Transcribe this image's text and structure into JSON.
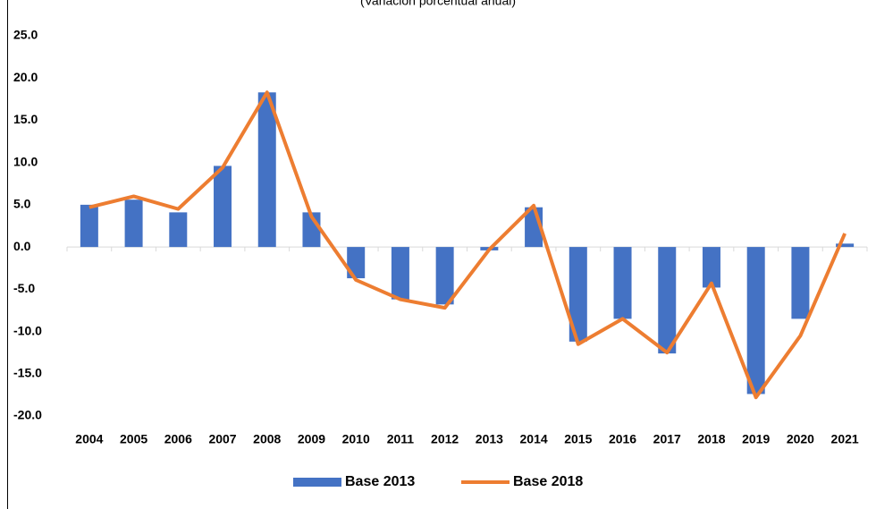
{
  "chart_data": {
    "type": "bar-line",
    "subtitle": "(Variación porcentual anual)",
    "categories": [
      "2004",
      "2005",
      "2006",
      "2007",
      "2008",
      "2009",
      "2010",
      "2011",
      "2012",
      "2013",
      "2014",
      "2015",
      "2016",
      "2017",
      "2018",
      "2019",
      "2020",
      "2021"
    ],
    "series": [
      {
        "name": "Base 2013",
        "type": "bar",
        "color": "#4472c4",
        "values": [
          5.0,
          5.6,
          4.1,
          9.6,
          18.3,
          4.1,
          -3.7,
          -6.2,
          -6.8,
          -0.4,
          4.7,
          -11.2,
          -8.5,
          -12.6,
          -4.8,
          -17.4,
          -8.5,
          0.4
        ]
      },
      {
        "name": "Base 2018",
        "type": "line",
        "color": "#ed7d31",
        "values": [
          4.7,
          6.0,
          4.5,
          9.4,
          18.3,
          3.6,
          -3.9,
          -6.2,
          -7.2,
          -0.3,
          4.9,
          -11.5,
          -8.5,
          -12.5,
          -4.3,
          -17.8,
          -10.5,
          1.6
        ]
      }
    ],
    "ylim": [
      -20,
      25
    ],
    "yticks": [
      {
        "value": 25,
        "label": "25.0"
      },
      {
        "value": 20,
        "label": "20.0"
      },
      {
        "value": 15,
        "label": "15.0"
      },
      {
        "value": 10,
        "label": "10.0"
      },
      {
        "value": 5,
        "label": "5.0"
      },
      {
        "value": 0,
        "label": "0.0"
      },
      {
        "value": -5,
        "label": "-5.0"
      },
      {
        "value": -10,
        "label": "-10.0"
      },
      {
        "value": -15,
        "label": "-15.0"
      },
      {
        "value": -20,
        "label": "-20.0"
      }
    ],
    "grid": false,
    "legend": "bottom"
  }
}
